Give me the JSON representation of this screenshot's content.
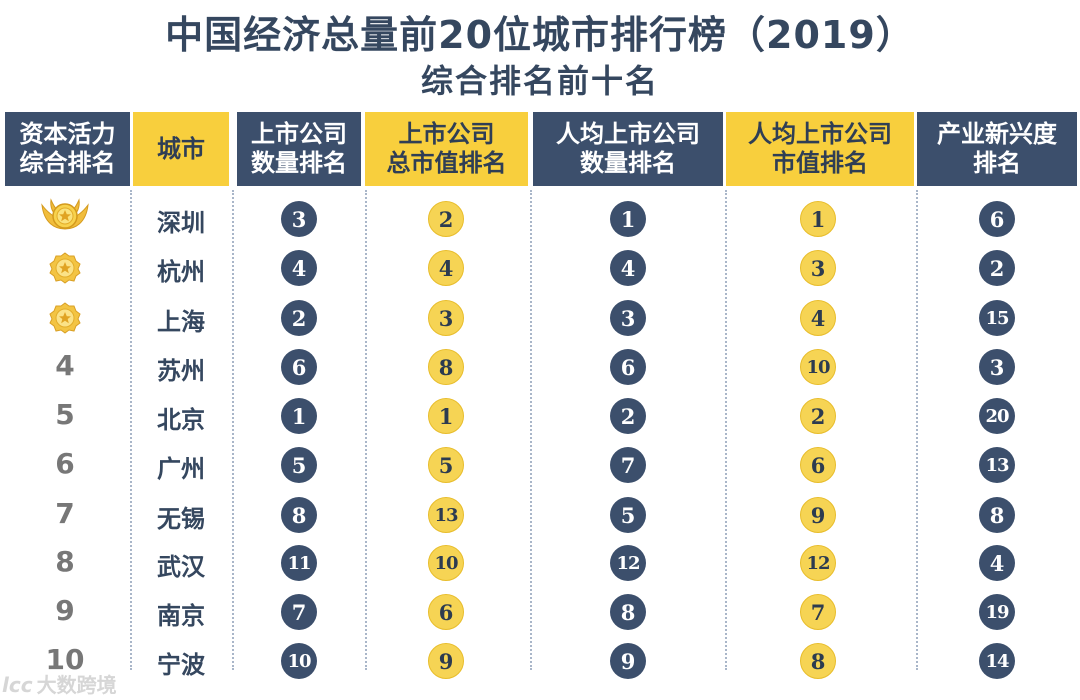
{
  "title": {
    "line1": "中国经济总量前20位城市排行榜（2019）",
    "line2": "综合排名前十名"
  },
  "headers": [
    {
      "label": "资本活力\n综合排名",
      "style": "dark"
    },
    {
      "label": "城市",
      "style": "yellow"
    },
    {
      "label": "上市公司\n数量排名",
      "style": "dark"
    },
    {
      "label": "上市公司\n总市值排名",
      "style": "yellow"
    },
    {
      "label": "人均上市公司\n数量排名",
      "style": "dark"
    },
    {
      "label": "人均上市公司\n市值排名",
      "style": "yellow"
    },
    {
      "label": "产业新兴度\n排名",
      "style": "dark"
    }
  ],
  "rows": [
    {
      "rank": "1",
      "medal": "gold-winged-medal",
      "city": "深圳",
      "values": [
        "3",
        "2",
        "1",
        "1",
        "6"
      ]
    },
    {
      "rank": "2",
      "medal": "gold-medal",
      "city": "杭州",
      "values": [
        "4",
        "4",
        "4",
        "3",
        "2"
      ]
    },
    {
      "rank": "3",
      "medal": "gold-medal",
      "city": "上海",
      "values": [
        "2",
        "3",
        "3",
        "4",
        "15"
      ]
    },
    {
      "rank": "4",
      "medal": null,
      "city": "苏州",
      "values": [
        "6",
        "8",
        "6",
        "10",
        "3"
      ]
    },
    {
      "rank": "5",
      "medal": null,
      "city": "北京",
      "values": [
        "1",
        "1",
        "2",
        "2",
        "20"
      ]
    },
    {
      "rank": "6",
      "medal": null,
      "city": "广州",
      "values": [
        "5",
        "5",
        "7",
        "6",
        "13"
      ]
    },
    {
      "rank": "7",
      "medal": null,
      "city": "无锡",
      "values": [
        "8",
        "13",
        "5",
        "9",
        "8"
      ]
    },
    {
      "rank": "8",
      "medal": null,
      "city": "武汉",
      "values": [
        "11",
        "10",
        "12",
        "12",
        "4"
      ]
    },
    {
      "rank": "9",
      "medal": null,
      "city": "南京",
      "values": [
        "7",
        "6",
        "8",
        "7",
        "19"
      ]
    },
    {
      "rank": "10",
      "medal": null,
      "city": "宁波",
      "values": [
        "10",
        "9",
        "9",
        "8",
        "14"
      ]
    }
  ],
  "watermark": {
    "logo": "lcc",
    "text": "大数跨境"
  },
  "colors": {
    "dark": "#3c4f6c",
    "yellow": "#f8cf3d",
    "title": "#35475f"
  }
}
